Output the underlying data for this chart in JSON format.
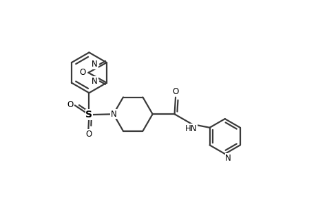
{
  "background_color": "#ffffff",
  "line_color": "#3a3a3a",
  "text_color": "#000000",
  "line_width": 1.6,
  "figsize": [
    4.6,
    3.0
  ],
  "dpi": 100,
  "xlim": [
    0,
    9.2
  ],
  "ylim": [
    0,
    6.0
  ]
}
